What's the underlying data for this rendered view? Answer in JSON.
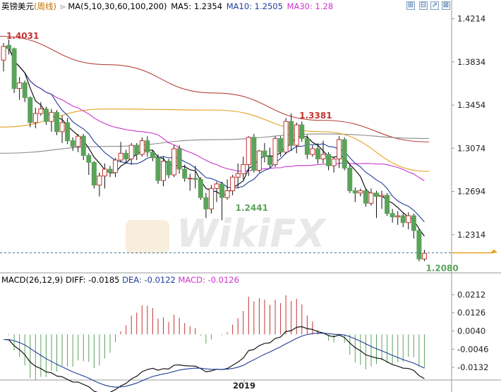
{
  "header": {
    "symbol": "英镑美元",
    "period": "(周线)",
    "ma_set": "MA(5,10,30,60,100,200)",
    "ma5": "MA5: 1.2354",
    "ma10": "MA10: 1.2505",
    "ma30": "MA30: 1.28"
  },
  "macd_header": {
    "params": "MACD(26,12,9)",
    "diff": "DIFF: -0.0185",
    "dea": "DEA: -0.0122",
    "macd": "MACD: -0.0126"
  },
  "toolbar": {
    "zoom_in": "⊞",
    "zoom_out": "⊟",
    "expand": "⇗",
    "close": "⊠"
  },
  "watermark": "WikiFX",
  "colors": {
    "up": "#c23531",
    "down": "#5ba35b",
    "ma5": "#000000",
    "ma10": "#1f3d99",
    "ma30": "#cc33cc",
    "ma60": "#e6a020",
    "ma100": "#8a8a8a",
    "ma200": "#b5433a",
    "diff": "#000000",
    "dea": "#1f3d99",
    "price_line": "#e6a020"
  },
  "chart_data": [
    {
      "type": "candlestick",
      "title": "英镑美元(周线)",
      "y_ticks": [
        "1.4214",
        "1.3834",
        "1.3454",
        "1.3074",
        "1.2694",
        "1.2314"
      ],
      "ylim": [
        1.199,
        1.4267
      ],
      "x_tick_labels": [
        "2019"
      ],
      "annotations": [
        {
          "label": "1.4031",
          "kind": "high"
        },
        {
          "label": "1.3381",
          "kind": "high"
        },
        {
          "label": "1.2441",
          "kind": "low"
        },
        {
          "label": "1.2080",
          "kind": "low"
        }
      ],
      "current_price": 1.2154,
      "candles_ohlc": [
        [
          1.385,
          1.4,
          1.375,
          1.397
        ],
        [
          1.398,
          1.403,
          1.39,
          1.395
        ],
        [
          1.395,
          1.396,
          1.356,
          1.36
        ],
        [
          1.36,
          1.37,
          1.35,
          1.365
        ],
        [
          1.365,
          1.367,
          1.348,
          1.352
        ],
        [
          1.352,
          1.353,
          1.326,
          1.33
        ],
        [
          1.33,
          1.343,
          1.325,
          1.338
        ],
        [
          1.338,
          1.348,
          1.336,
          1.342
        ],
        [
          1.342,
          1.344,
          1.328,
          1.331
        ],
        [
          1.331,
          1.342,
          1.322,
          1.339
        ],
        [
          1.339,
          1.341,
          1.319,
          1.322
        ],
        [
          1.322,
          1.336,
          1.312,
          1.33
        ],
        [
          1.33,
          1.334,
          1.311,
          1.314
        ],
        [
          1.314,
          1.317,
          1.305,
          1.309
        ],
        [
          1.309,
          1.32,
          1.304,
          1.318
        ],
        [
          1.318,
          1.32,
          1.297,
          1.301
        ],
        [
          1.301,
          1.303,
          1.284,
          1.295
        ],
        [
          1.295,
          1.296,
          1.272,
          1.275
        ],
        [
          1.275,
          1.286,
          1.265,
          1.283
        ],
        [
          1.283,
          1.294,
          1.272,
          1.289
        ],
        [
          1.289,
          1.292,
          1.282,
          1.286
        ],
        [
          1.286,
          1.299,
          1.282,
          1.297
        ],
        [
          1.297,
          1.313,
          1.295,
          1.303
        ],
        [
          1.303,
          1.306,
          1.294,
          1.298
        ],
        [
          1.298,
          1.312,
          1.293,
          1.31
        ],
        [
          1.31,
          1.312,
          1.297,
          1.302
        ],
        [
          1.302,
          1.317,
          1.3,
          1.314
        ],
        [
          1.314,
          1.318,
          1.3,
          1.304
        ],
        [
          1.304,
          1.306,
          1.296,
          1.299
        ],
        [
          1.299,
          1.302,
          1.276,
          1.279
        ],
        [
          1.279,
          1.3,
          1.274,
          1.296
        ],
        [
          1.296,
          1.298,
          1.281,
          1.284
        ],
        [
          1.284,
          1.31,
          1.282,
          1.307
        ],
        [
          1.307,
          1.31,
          1.285,
          1.289
        ],
        [
          1.289,
          1.293,
          1.278,
          1.281
        ],
        [
          1.281,
          1.285,
          1.27,
          1.281
        ],
        [
          1.281,
          1.292,
          1.272,
          1.28
        ],
        [
          1.28,
          1.282,
          1.262,
          1.264
        ],
        [
          1.264,
          1.268,
          1.246,
          1.254
        ],
        [
          1.254,
          1.275,
          1.25,
          1.272
        ],
        [
          1.272,
          1.278,
          1.26,
          1.276
        ],
        [
          1.276,
          1.278,
          1.244,
          1.264
        ],
        [
          1.264,
          1.28,
          1.262,
          1.27
        ],
        [
          1.27,
          1.284,
          1.266,
          1.282
        ],
        [
          1.282,
          1.294,
          1.272,
          1.285
        ],
        [
          1.285,
          1.3,
          1.28,
          1.293
        ],
        [
          1.293,
          1.318,
          1.283,
          1.317
        ],
        [
          1.317,
          1.32,
          1.286,
          1.288
        ],
        [
          1.288,
          1.306,
          1.286,
          1.305
        ],
        [
          1.305,
          1.312,
          1.295,
          1.3
        ],
        [
          1.3,
          1.308,
          1.29,
          1.293
        ],
        [
          1.293,
          1.318,
          1.291,
          1.316
        ],
        [
          1.316,
          1.318,
          1.3,
          1.304
        ],
        [
          1.304,
          1.334,
          1.302,
          1.331
        ],
        [
          1.331,
          1.338,
          1.305,
          1.31
        ],
        [
          1.31,
          1.33,
          1.303,
          1.328
        ],
        [
          1.328,
          1.331,
          1.313,
          1.316
        ],
        [
          1.316,
          1.319,
          1.298,
          1.302
        ],
        [
          1.302,
          1.31,
          1.3,
          1.307
        ],
        [
          1.307,
          1.312,
          1.294,
          1.298
        ],
        [
          1.298,
          1.314,
          1.294,
          1.302
        ],
        [
          1.302,
          1.304,
          1.288,
          1.292
        ],
        [
          1.292,
          1.3,
          1.286,
          1.298
        ],
        [
          1.298,
          1.318,
          1.29,
          1.315
        ],
        [
          1.315,
          1.317,
          1.288,
          1.29
        ],
        [
          1.29,
          1.293,
          1.268,
          1.27
        ],
        [
          1.27,
          1.273,
          1.26,
          1.268
        ],
        [
          1.268,
          1.272,
          1.265,
          1.27
        ],
        [
          1.27,
          1.272,
          1.256,
          1.259
        ],
        [
          1.259,
          1.272,
          1.257,
          1.268
        ],
        [
          1.268,
          1.27,
          1.246,
          1.265
        ],
        [
          1.265,
          1.27,
          1.254,
          1.266
        ],
        [
          1.266,
          1.268,
          1.248,
          1.25
        ],
        [
          1.25,
          1.254,
          1.242,
          1.247
        ],
        [
          1.247,
          1.252,
          1.24,
          1.248
        ],
        [
          1.248,
          1.25,
          1.238,
          1.242
        ],
        [
          1.242,
          1.251,
          1.236,
          1.248
        ],
        [
          1.248,
          1.25,
          1.228,
          1.235
        ],
        [
          1.235,
          1.236,
          1.208,
          1.21
        ],
        [
          1.21,
          1.218,
          1.208,
          1.215
        ]
      ],
      "series": [
        {
          "name": "MA200",
          "values": [
            1.406,
            1.381,
            1.356,
            1.332,
            1.313
          ]
        },
        {
          "name": "MA100",
          "values": [
            1.303,
            1.309,
            1.315,
            1.32,
            1.316
          ]
        },
        {
          "name": "MA60",
          "values": [
            1.326,
            1.342,
            1.341,
            1.322,
            1.287
          ]
        },
        {
          "name": "MA30",
          "values": [
            1.393,
            1.368,
            1.327,
            1.295,
            1.28
          ]
        }
      ]
    },
    {
      "type": "macd",
      "title": "MACD(26,12,9)",
      "y_ticks": [
        "0.0212",
        "0.0126",
        "0.0040",
        "-0.0046",
        "-0.0132"
      ],
      "ylim": [
        -0.0185,
        0.0255
      ],
      "series": [
        {
          "name": "DIFF",
          "value": -0.0185
        },
        {
          "name": "DEA",
          "value": -0.0122
        },
        {
          "name": "MACD",
          "value": -0.0126
        }
      ]
    }
  ]
}
